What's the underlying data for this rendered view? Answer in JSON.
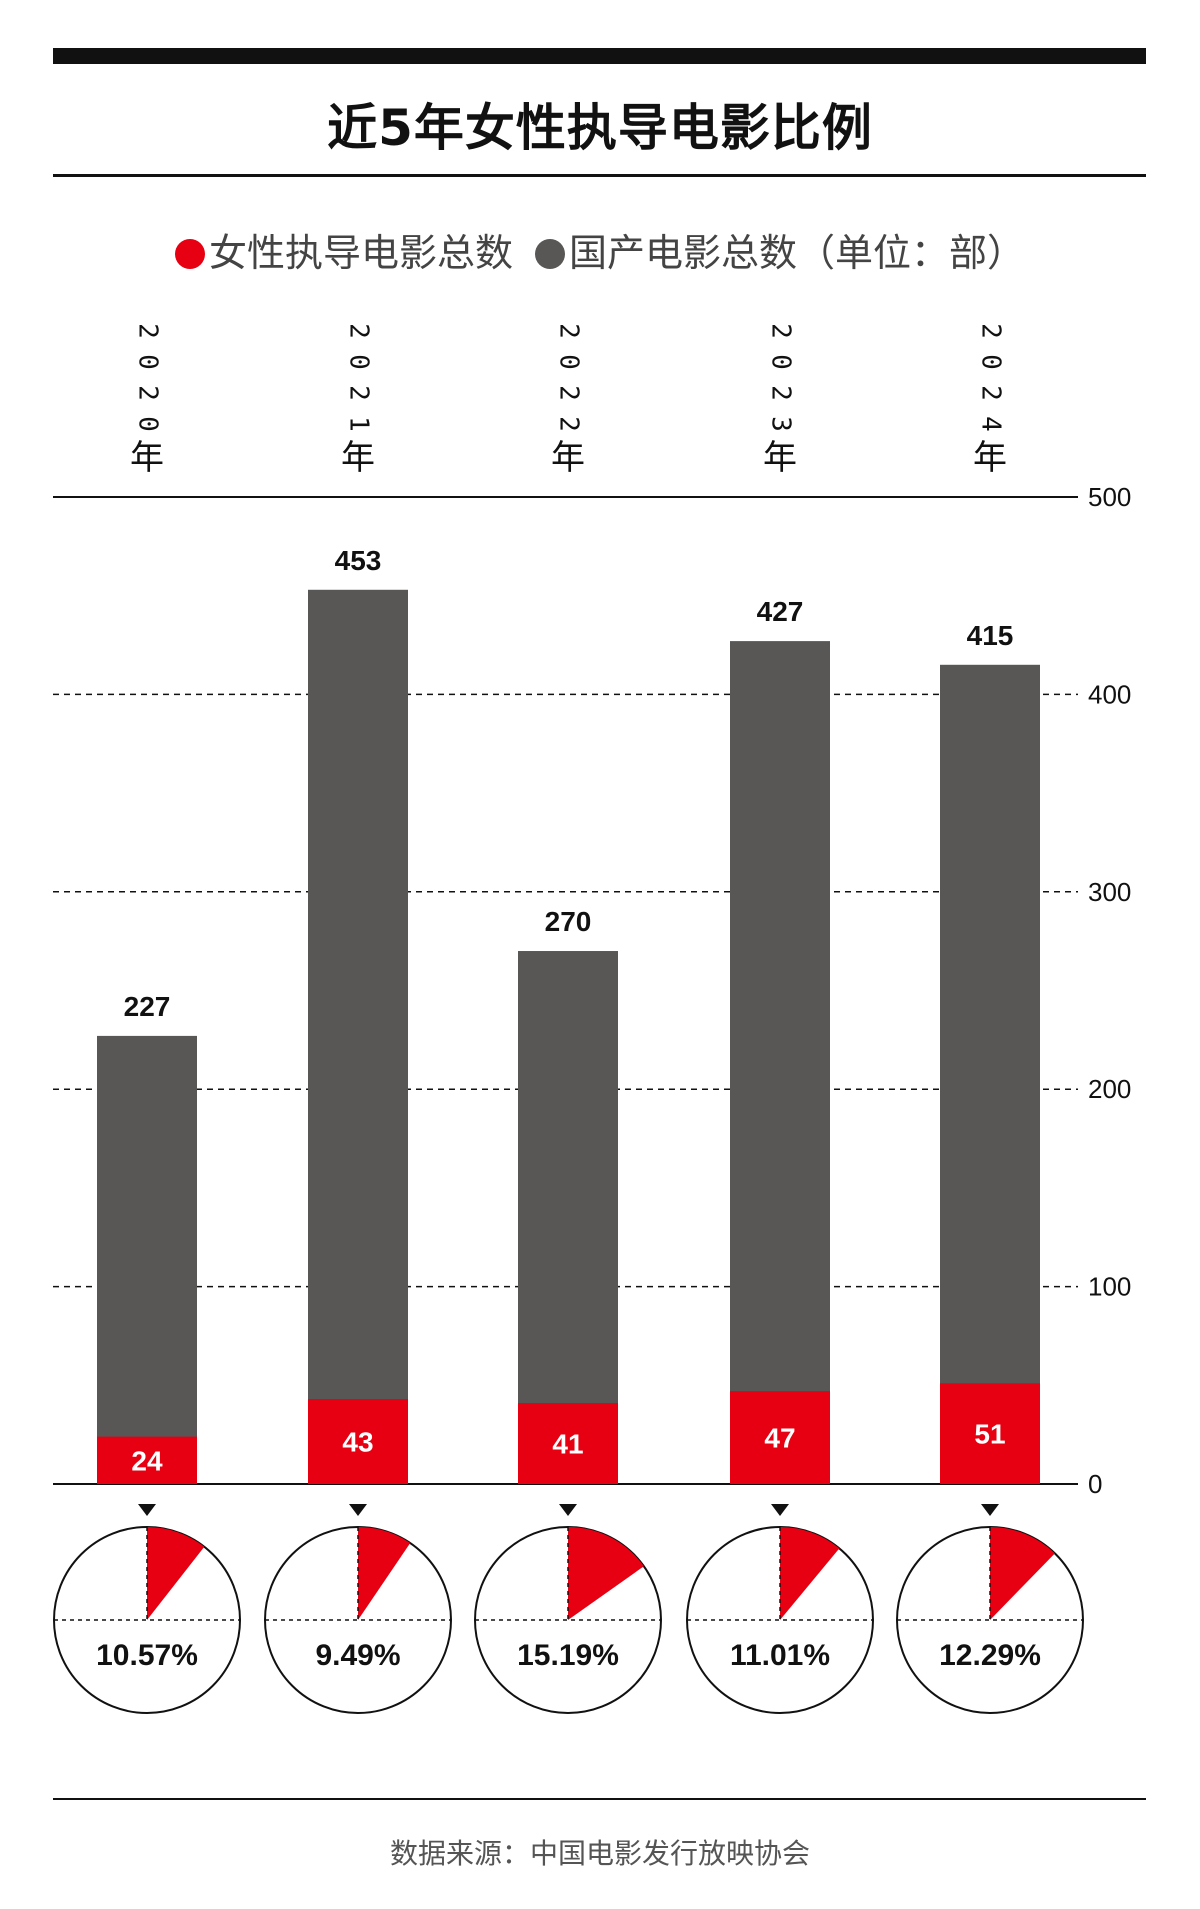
{
  "title": "近5年女性执导电影比例",
  "legend": {
    "female_label": "女性执导电影总数",
    "domestic_label": "国产电影总数（单位：部）"
  },
  "colors": {
    "female": "#e60012",
    "domestic": "#595755",
    "axis": "#111111"
  },
  "source": "数据来源：中国电影发行放映协会",
  "chart_data": {
    "type": "bar",
    "stacked_overlay": true,
    "categories": [
      "2020年",
      "2021年",
      "2022年",
      "2023年",
      "2024年"
    ],
    "year_digits": [
      "2020",
      "2021",
      "2022",
      "2023",
      "2024"
    ],
    "year_suffix": "年",
    "series": [
      {
        "name": "国产电影总数",
        "values": [
          227,
          453,
          270,
          427,
          415
        ],
        "labels": [
          "227",
          "453",
          "270",
          "427",
          "415"
        ]
      },
      {
        "name": "女性执导电影总数",
        "values": [
          24,
          43,
          41,
          47,
          51
        ],
        "labels": [
          "24",
          "43",
          "41",
          "47",
          "51"
        ]
      }
    ],
    "ratios": [
      10.57,
      9.49,
      15.19,
      11.01,
      12.29
    ],
    "ratio_labels": [
      "10.57%",
      "9.49%",
      "15.19%",
      "11.01%",
      "12.29%"
    ],
    "yticks": [
      0,
      100,
      200,
      300,
      400,
      500
    ],
    "ylim": [
      0,
      500
    ],
    "y_axis_side": "right",
    "grid": "dashed"
  }
}
